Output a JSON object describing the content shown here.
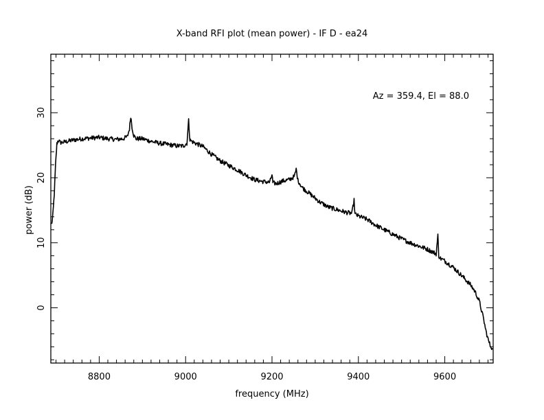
{
  "chart_data": {
    "type": "line",
    "title": "X-band RFI plot (mean power) - IF D - ea24",
    "xlabel": "frequency (MHz)",
    "ylabel": "power (dB)",
    "annotation": "Az = 359.4, El = 88.0",
    "xlim": [
      8688,
      9712
    ],
    "ylim": [
      -8.5,
      39
    ],
    "x_ticks": [
      8800,
      9000,
      9200,
      9400,
      9600
    ],
    "x_tick_labels": [
      "8800",
      "9000",
      "9200",
      "9400",
      "9600"
    ],
    "y_ticks": [
      0,
      10,
      20,
      30
    ],
    "y_tick_labels": [
      "0",
      "10",
      "20",
      "30"
    ],
    "grid": false,
    "line_color": "#000000",
    "series": [
      {
        "x": [
          8690,
          8693,
          8696,
          8699,
          8702,
          8705,
          8710,
          8720,
          8740,
          8760,
          8780,
          8800,
          8820,
          8840,
          8855,
          8865,
          8870,
          8873,
          8876,
          8880,
          8885,
          8900,
          8920,
          8940,
          8960,
          8980,
          8995,
          9003,
          9007,
          9010,
          9014,
          9020,
          9040,
          9060,
          9080,
          9100,
          9120,
          9140,
          9160,
          9180,
          9195,
          9200,
          9202,
          9210,
          9225,
          9240,
          9252,
          9256,
          9260,
          9270,
          9290,
          9310,
          9330,
          9350,
          9370,
          9385,
          9390,
          9392,
          9400,
          9420,
          9440,
          9460,
          9480,
          9500,
          9520,
          9540,
          9560,
          9580,
          9584,
          9586,
          9590,
          9600,
          9620,
          9640,
          9660,
          9670,
          9680,
          9690,
          9695,
          9700,
          9705,
          9710
        ],
        "y": [
          12.8,
          14.5,
          17.5,
          22,
          25.2,
          25.8,
          25.4,
          25.5,
          25.8,
          26.0,
          26.1,
          26.2,
          26.0,
          25.9,
          26.0,
          26.3,
          27.5,
          29.5,
          27.8,
          26.5,
          26.0,
          26.0,
          25.6,
          25.3,
          25.1,
          24.9,
          24.9,
          25.3,
          28.8,
          25.8,
          25.6,
          25.4,
          24.8,
          23.6,
          22.6,
          21.9,
          21.2,
          20.4,
          19.7,
          19.4,
          19.3,
          20.5,
          19.2,
          19.1,
          19.5,
          19.7,
          20.2,
          21.3,
          19.6,
          18.5,
          17.4,
          16.3,
          15.5,
          15.1,
          14.7,
          14.5,
          16.5,
          14.4,
          14.1,
          13.6,
          12.7,
          12.0,
          11.3,
          10.6,
          10.0,
          9.5,
          9.0,
          8.3,
          11.1,
          8.0,
          7.6,
          7.2,
          6.2,
          4.9,
          3.5,
          2.5,
          1.0,
          -1.8,
          -3.5,
          -4.8,
          -5.8,
          -6.2
        ]
      }
    ]
  }
}
